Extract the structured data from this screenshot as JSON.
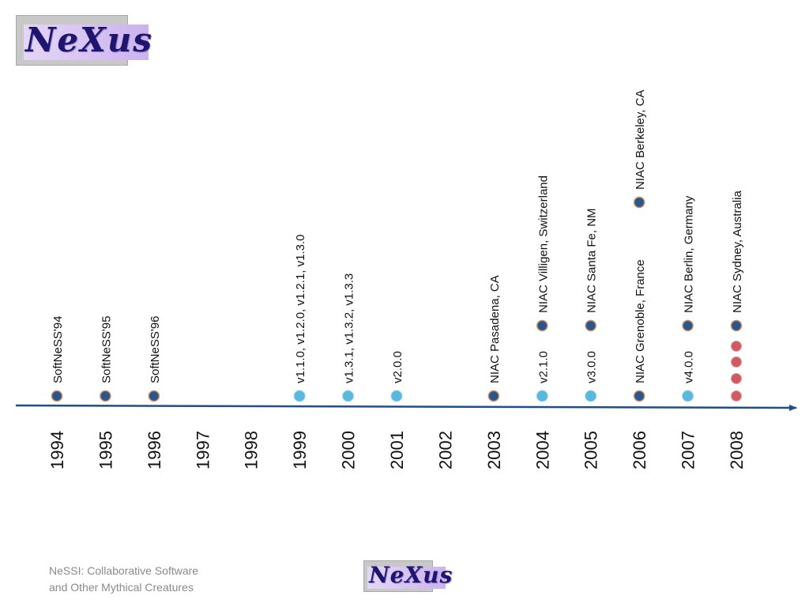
{
  "logo_text": "NeXus",
  "footer": {
    "line1": "NeSSI: Collaborative Software",
    "line2": "and Other Mythical Creatures"
  },
  "colors": {
    "axis": "#1f4e89",
    "dot_dark": "#2a568d",
    "dot_light": "#5ab8de",
    "dot_red": "#cf5a60",
    "dot_ring": "#c89060"
  },
  "years": [
    "1994",
    "1995",
    "1996",
    "1997",
    "1998",
    "1999",
    "2000",
    "2001",
    "2002",
    "2003",
    "2004",
    "2005",
    "2006",
    "2007",
    "2008"
  ],
  "events": [
    {
      "year": "1994",
      "level": 0,
      "kind": "dark",
      "label": "SoftNeSS'94"
    },
    {
      "year": "1995",
      "level": 0,
      "kind": "dark",
      "label": "SoftNeSS'95"
    },
    {
      "year": "1996",
      "level": 0,
      "kind": "dark",
      "label": "SoftNeSS'96"
    },
    {
      "year": "1999",
      "level": 0,
      "kind": "light",
      "label": "v1.1.0, v1.2.0, v1.2.1, v1.3.0"
    },
    {
      "year": "2000",
      "level": 0,
      "kind": "light",
      "label": "v1.3.1, v1.3.2, v1.3.3"
    },
    {
      "year": "2001",
      "level": 0,
      "kind": "light",
      "label": "v2.0.0"
    },
    {
      "year": "2003",
      "level": 0,
      "kind": "dark",
      "label": "NIAC Pasadena, CA"
    },
    {
      "year": "2004",
      "level": 0,
      "kind": "light",
      "label": "v2.1.0"
    },
    {
      "year": "2004",
      "level": 1,
      "kind": "dark",
      "label": "NIAC Villigen, Switzerland"
    },
    {
      "year": "2005",
      "level": 0,
      "kind": "light",
      "label": "v3.0.0"
    },
    {
      "year": "2005",
      "level": 1,
      "kind": "dark",
      "label": "NIAC Santa Fe, NM"
    },
    {
      "year": "2006",
      "level": 0,
      "kind": "dark",
      "label": "NIAC Grenoble, France"
    },
    {
      "year": "2006",
      "level": 2,
      "kind": "dark",
      "label": "NIAC Berkeley, CA"
    },
    {
      "year": "2007",
      "level": 0,
      "kind": "light",
      "label": "v4.0.0"
    },
    {
      "year": "2007",
      "level": 1,
      "kind": "dark",
      "label": "NIAC Berlin, Germany"
    },
    {
      "year": "2008",
      "level": 0,
      "kind": "red",
      "label": ""
    },
    {
      "year": "2008",
      "level": 0.25,
      "kind": "red",
      "label": ""
    },
    {
      "year": "2008",
      "level": 0.5,
      "kind": "red",
      "label": ""
    },
    {
      "year": "2008",
      "level": 0.75,
      "kind": "red",
      "label": ""
    },
    {
      "year": "2008",
      "level": 1,
      "kind": "dark",
      "label": "NIAC Sydney, Australia"
    }
  ]
}
